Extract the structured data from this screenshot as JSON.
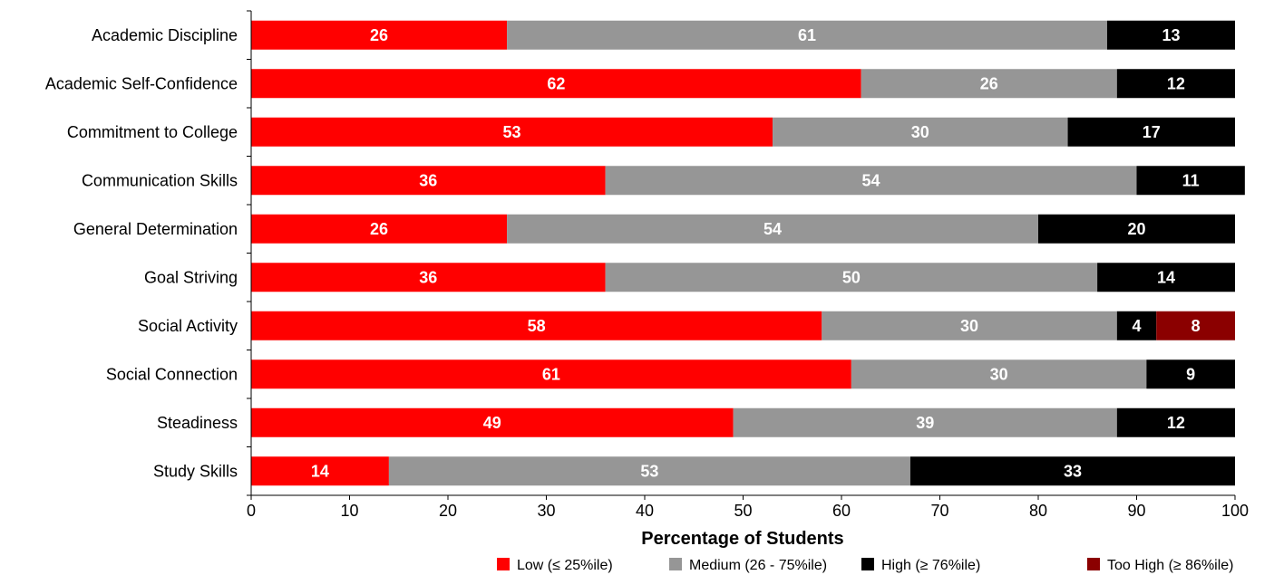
{
  "chart_data": {
    "type": "bar",
    "orientation": "horizontal",
    "stacked": true,
    "categories": [
      "Academic Discipline",
      "Academic Self-Confidence",
      "Commitment to College",
      "Communication Skills",
      "General Determination",
      "Goal Striving",
      "Social Activity",
      "Social Connection",
      "Steadiness",
      "Study Skills"
    ],
    "series": [
      {
        "name": "Low (≤ 25%ile)",
        "color": "#ff0000",
        "values": [
          26,
          62,
          53,
          36,
          26,
          36,
          58,
          61,
          49,
          14
        ]
      },
      {
        "name": "Medium (26 - 75%ile)",
        "color": "#969696",
        "values": [
          61,
          26,
          30,
          54,
          54,
          50,
          30,
          30,
          39,
          53
        ]
      },
      {
        "name": "High (≥ 76%ile)",
        "color": "#000000",
        "values": [
          13,
          12,
          17,
          11,
          20,
          14,
          4,
          9,
          12,
          33
        ]
      },
      {
        "name": "Too High (≥ 86%ile)",
        "color": "#8b0000",
        "values": [
          0,
          0,
          0,
          0,
          0,
          0,
          8,
          0,
          0,
          0
        ]
      }
    ],
    "xlabel": "Percentage of Students",
    "xlim": [
      0,
      100
    ],
    "xticks": [
      0,
      10,
      20,
      30,
      40,
      50,
      60,
      70,
      80,
      90,
      100
    ],
    "grid": false,
    "legend_position": "bottom-right",
    "data_labels": true
  }
}
